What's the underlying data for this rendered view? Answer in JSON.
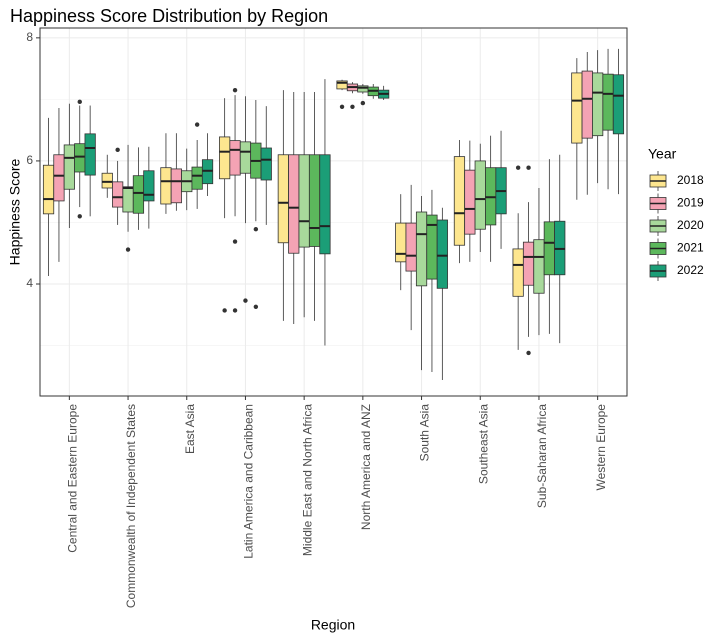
{
  "chart_data": {
    "type": "box",
    "title": "Happiness Score Distribution by Region",
    "x_label": "Region",
    "y_label": "Happiness Score",
    "legend_title": "Year",
    "legend_position": "right",
    "grid": true,
    "ylim": [
      2.18,
      8.16
    ],
    "yticks": [
      4,
      6,
      8
    ],
    "minor_yticks": [
      3,
      5,
      7
    ],
    "categories": [
      "Central and Eastern Europe",
      "Commonwealth of Independent States",
      "East Asia",
      "Latin America and Caribbean",
      "Middle East and North Africa",
      "North America and ANZ",
      "South Asia",
      "Southeast Asia",
      "Sub-Saharan Africa",
      "Western Europe"
    ],
    "series": [
      {
        "name": "2018",
        "color": "#fde68f",
        "low": [
          4.13,
          5.4,
          5.14,
          5.07,
          3.4,
          7.15,
          3.9,
          4.34,
          2.93,
          5.37
        ],
        "q1": [
          5.14,
          5.56,
          5.3,
          5.71,
          4.67,
          7.17,
          4.36,
          4.63,
          3.8,
          6.29
        ],
        "median": [
          5.38,
          5.66,
          5.67,
          6.15,
          5.32,
          7.27,
          4.49,
          5.15,
          4.31,
          6.98
        ],
        "q3": [
          5.93,
          5.8,
          5.89,
          6.39,
          6.1,
          7.3,
          4.99,
          6.07,
          4.57,
          7.43
        ],
        "high": [
          6.7,
          6.1,
          6.45,
          7.02,
          7.15,
          7.32,
          5.46,
          6.34,
          5.15,
          7.67
        ],
        "outliers": [
          [],
          [],
          [],
          [
            3.57
          ],
          [],
          [
            6.88
          ],
          [],
          [],
          [
            5.89
          ],
          []
        ]
      },
      {
        "name": "2019",
        "color": "#f4a3b4",
        "low": [
          4.36,
          4.96,
          5.19,
          5.1,
          3.35,
          7.1,
          3.25,
          4.36,
          3.14,
          5.45
        ],
        "q1": [
          5.35,
          5.25,
          5.32,
          5.77,
          4.5,
          7.14,
          4.21,
          4.81,
          3.98,
          6.37
        ],
        "median": [
          5.76,
          5.41,
          5.67,
          6.18,
          5.24,
          7.2,
          4.46,
          5.22,
          4.44,
          7.01
        ],
        "q3": [
          6.1,
          5.66,
          5.87,
          6.33,
          6.1,
          7.25,
          4.99,
          5.85,
          4.68,
          7.46
        ],
        "high": [
          6.86,
          6.0,
          6.45,
          7.07,
          7.12,
          7.28,
          5.61,
          6.33,
          5.33,
          7.77
        ],
        "outliers": [
          [],
          [
            6.18
          ],
          [],
          [
            7.15,
            4.69,
            3.57
          ],
          [],
          [
            6.88
          ],
          [],
          [],
          [
            5.89,
            2.88
          ],
          []
        ]
      },
      {
        "name": "2020",
        "color": "#a8d99b",
        "low": [
          4.91,
          4.85,
          5.2,
          4.99,
          3.46,
          7.09,
          2.6,
          4.52,
          3.17,
          5.64
        ],
        "q1": [
          5.54,
          5.17,
          5.5,
          5.8,
          4.6,
          7.12,
          3.97,
          4.89,
          3.85,
          6.41
        ],
        "median": [
          6.05,
          5.56,
          5.67,
          6.15,
          5.02,
          7.19,
          4.81,
          5.38,
          4.44,
          7.11
        ],
        "q3": [
          6.26,
          5.58,
          5.84,
          6.31,
          6.1,
          7.22,
          5.17,
          6.0,
          4.72,
          7.43
        ],
        "high": [
          6.93,
          6.26,
          6.2,
          7.05,
          7.12,
          7.25,
          5.43,
          6.28,
          5.56,
          7.8
        ],
        "outliers": [
          [],
          [
            4.56
          ],
          [],
          [
            3.73
          ],
          [],
          [
            6.94
          ],
          [],
          [],
          [],
          []
        ]
      },
      {
        "name": "2021",
        "color": "#5cb85c",
        "low": [
          5.25,
          4.88,
          5.22,
          5.02,
          3.4,
          7.01,
          2.57,
          4.36,
          3.19,
          5.54
        ],
        "q1": [
          5.82,
          5.15,
          5.54,
          5.72,
          4.61,
          7.06,
          4.08,
          4.96,
          4.15,
          6.5
        ],
        "median": [
          6.07,
          5.48,
          5.76,
          6.0,
          4.91,
          7.14,
          4.96,
          5.41,
          4.67,
          7.09
        ],
        "q3": [
          6.28,
          5.76,
          5.9,
          6.29,
          6.1,
          7.2,
          5.12,
          5.89,
          5.01,
          7.41
        ],
        "high": [
          6.9,
          6.22,
          6.34,
          6.99,
          7.12,
          7.25,
          5.53,
          6.41,
          6.03,
          7.82
        ],
        "outliers": [
          [
            6.96,
            5.1
          ],
          [],
          [
            6.59
          ],
          [
            4.89,
            3.63
          ],
          [],
          [],
          [],
          [],
          [],
          []
        ]
      },
      {
        "name": "2022",
        "color": "#1b9e77",
        "low": [
          5.1,
          4.9,
          5.43,
          4.96,
          3.0,
          6.99,
          2.44,
          4.57,
          3.04,
          5.46
        ],
        "q1": [
          5.77,
          5.35,
          5.63,
          5.69,
          4.49,
          7.02,
          3.93,
          5.14,
          4.15,
          6.44
        ],
        "median": [
          6.21,
          5.45,
          5.84,
          6.02,
          4.94,
          7.09,
          4.46,
          5.51,
          4.57,
          7.06
        ],
        "q3": [
          6.44,
          5.84,
          6.02,
          6.21,
          6.1,
          7.15,
          5.04,
          5.89,
          5.02,
          7.4
        ],
        "high": [
          6.9,
          6.23,
          6.45,
          6.89,
          7.33,
          7.22,
          5.24,
          6.49,
          6.1,
          7.82
        ],
        "outliers": [
          [],
          [],
          [],
          [],
          [],
          [],
          [],
          [],
          [],
          []
        ]
      }
    ]
  }
}
